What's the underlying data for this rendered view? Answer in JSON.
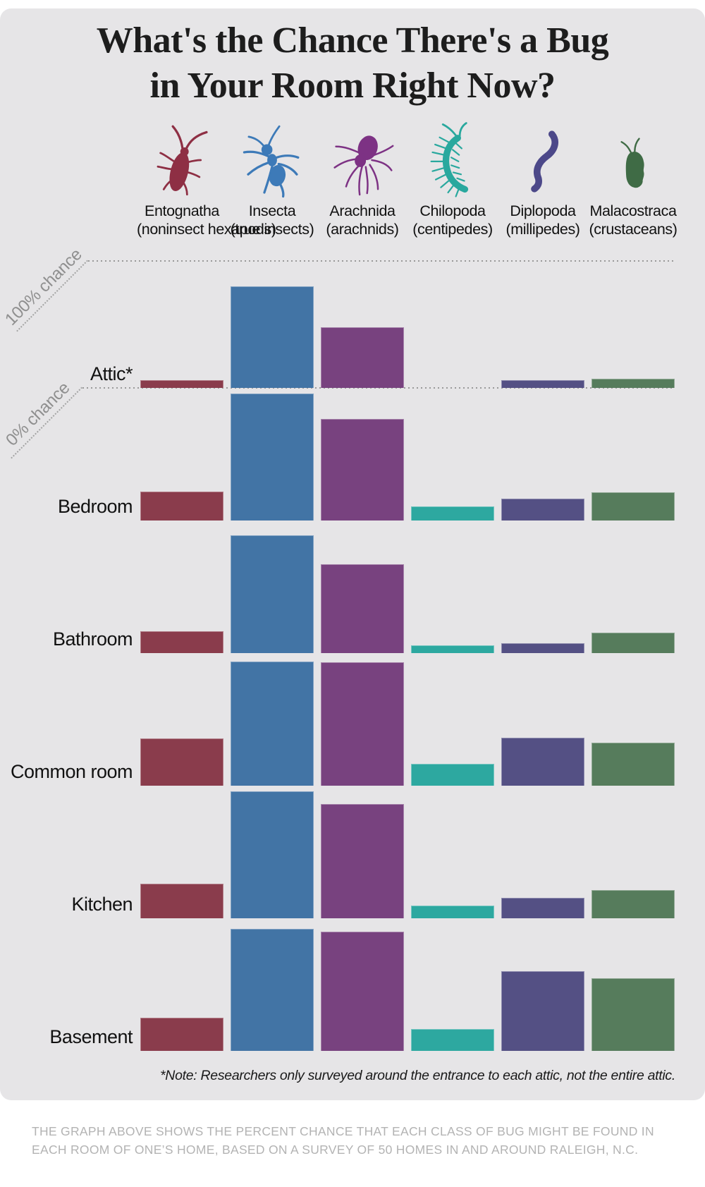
{
  "page": {
    "title_line1": "What's the Chance There's a Bug",
    "title_line2": "in Your Room Right Now?",
    "note": "*Note: Researchers only surveyed around the entrance to each attic, not the entire attic.",
    "caption": "THE GRAPH ABOVE SHOWS THE PERCENT CHANCE THAT EACH CLASS OF BUG MIGHT BE FOUND IN EACH ROOM OF ONE’S HOME, BASED ON A SURVEY OF 50 HOMES IN AND AROUND RALEIGH, N.C."
  },
  "colors": {
    "panel_bg": "#e6e5e7",
    "grid_dotted": "#9a9a9a",
    "axis_text": "#8f8f8f",
    "caption_text": "#b3b3b3",
    "title_text": "#1d1d1d"
  },
  "chart_data": {
    "type": "bar",
    "title": "What's the Chance There's a Bug in Your Room Right Now?",
    "ylabel": "percent chance",
    "ylim": [
      0,
      100
    ],
    "grid": "dotted line at 100% and at Attic 0% baseline",
    "legend_position": "top",
    "axis_annotations": {
      "top_line": "100% chance",
      "baseline": "0% chance"
    },
    "classes": [
      {
        "name": "Entognatha",
        "sublabel": "(noninsect hexapods)",
        "color": "#8a3c4c",
        "icon_color": "#8e2f44",
        "icon": "springtail-icon"
      },
      {
        "name": "Insecta",
        "sublabel": "(true insects)",
        "color": "#4274a5",
        "icon_color": "#3d7ab8",
        "icon": "ant-icon"
      },
      {
        "name": "Arachnida",
        "sublabel": "(arachnids)",
        "color": "#78427f",
        "icon_color": "#7d3284",
        "icon": "spider-icon"
      },
      {
        "name": "Chilopoda",
        "sublabel": "(centipedes)",
        "color": "#2da8a0",
        "icon_color": "#29a89e",
        "icon": "centipede-icon"
      },
      {
        "name": "Diplopoda",
        "sublabel": "(millipedes)",
        "color": "#545084",
        "icon_color": "#4c4889",
        "icon": "millipede-icon"
      },
      {
        "name": "Malacostraca",
        "sublabel": "(crustaceans)",
        "color": "#567c5c",
        "icon_color": "#3f6b45",
        "icon": "isopod-icon"
      }
    ],
    "rows": [
      {
        "room": "Attic*",
        "values": [
          6,
          80,
          48,
          0,
          6,
          7
        ]
      },
      {
        "room": "Bedroom",
        "values": [
          23,
          100,
          80,
          11,
          17,
          22
        ]
      },
      {
        "room": "Bathroom",
        "values": [
          17,
          93,
          70,
          6,
          8,
          16
        ]
      },
      {
        "room": "Common room",
        "values": [
          37,
          98,
          97,
          17,
          38,
          34
        ]
      },
      {
        "room": "Kitchen",
        "values": [
          27,
          100,
          90,
          10,
          16,
          22
        ]
      },
      {
        "room": "Basement",
        "values": [
          26,
          96,
          94,
          17,
          63,
          57
        ]
      }
    ]
  }
}
